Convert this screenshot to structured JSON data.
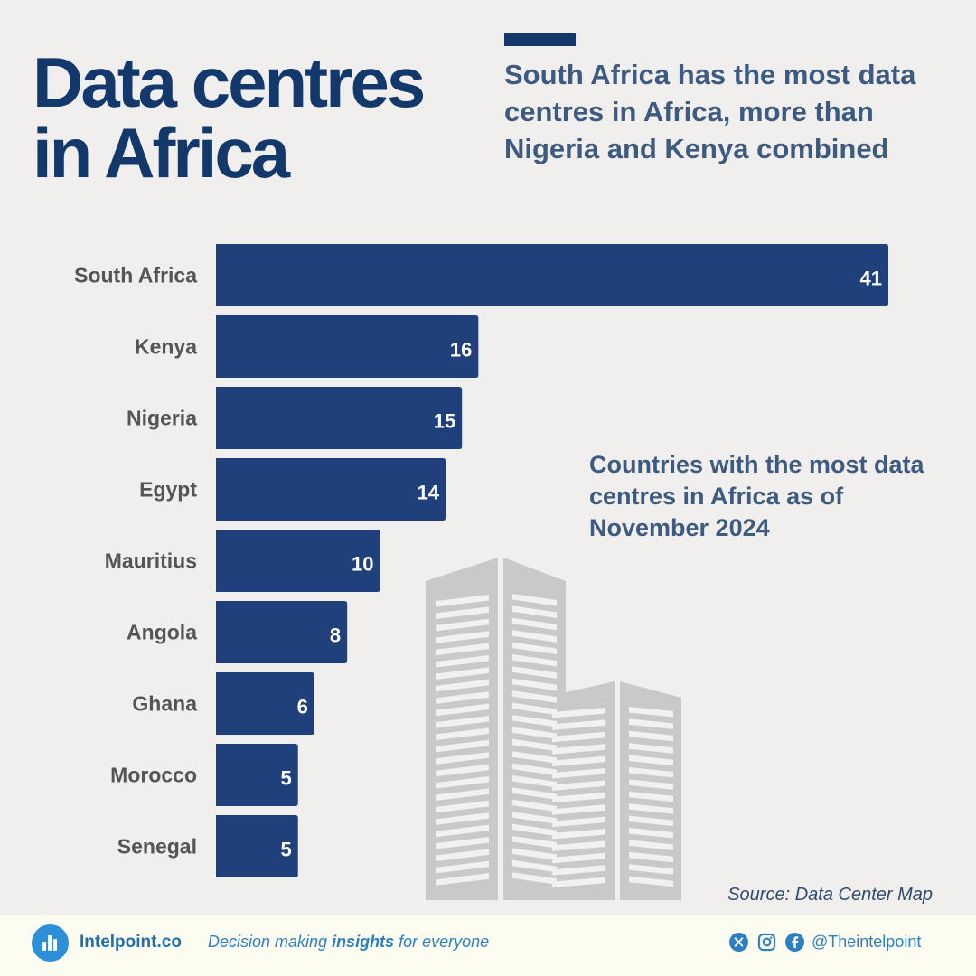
{
  "header": {
    "title_line1": "Data centres",
    "title_line2": "in Africa",
    "subtitle": "South Africa has the most data centres in Africa, more than Nigeria and Kenya combined"
  },
  "note": "Countries with the most data centres in Africa as of November 2024",
  "source": "Source: Data Center Map",
  "footer": {
    "brand": "Intelpoint.co",
    "tagline_pre": "Decision making ",
    "tagline_bold": "insights",
    "tagline_post": " for everyone",
    "handle": "@Theintelpoint",
    "icons": [
      "x-icon",
      "instagram-icon",
      "facebook-icon"
    ]
  },
  "colors": {
    "bar": "#1f407a",
    "title": "#13386b",
    "subtitle": "#3d5a80",
    "label": "#555555",
    "building": "#c9c9c9"
  },
  "chart_data": {
    "type": "bar",
    "orientation": "horizontal",
    "title": "Countries with the most data centres in Africa as of November 2024",
    "categories": [
      "South Africa",
      "Kenya",
      "Nigeria",
      "Egypt",
      "Mauritius",
      "Angola",
      "Ghana",
      "Morocco",
      "Senegal"
    ],
    "values": [
      41,
      16,
      15,
      14,
      10,
      8,
      6,
      5,
      5
    ],
    "xlabel": "",
    "ylabel": "",
    "xlim": [
      0,
      41
    ],
    "grid": false,
    "data_labels": true
  }
}
